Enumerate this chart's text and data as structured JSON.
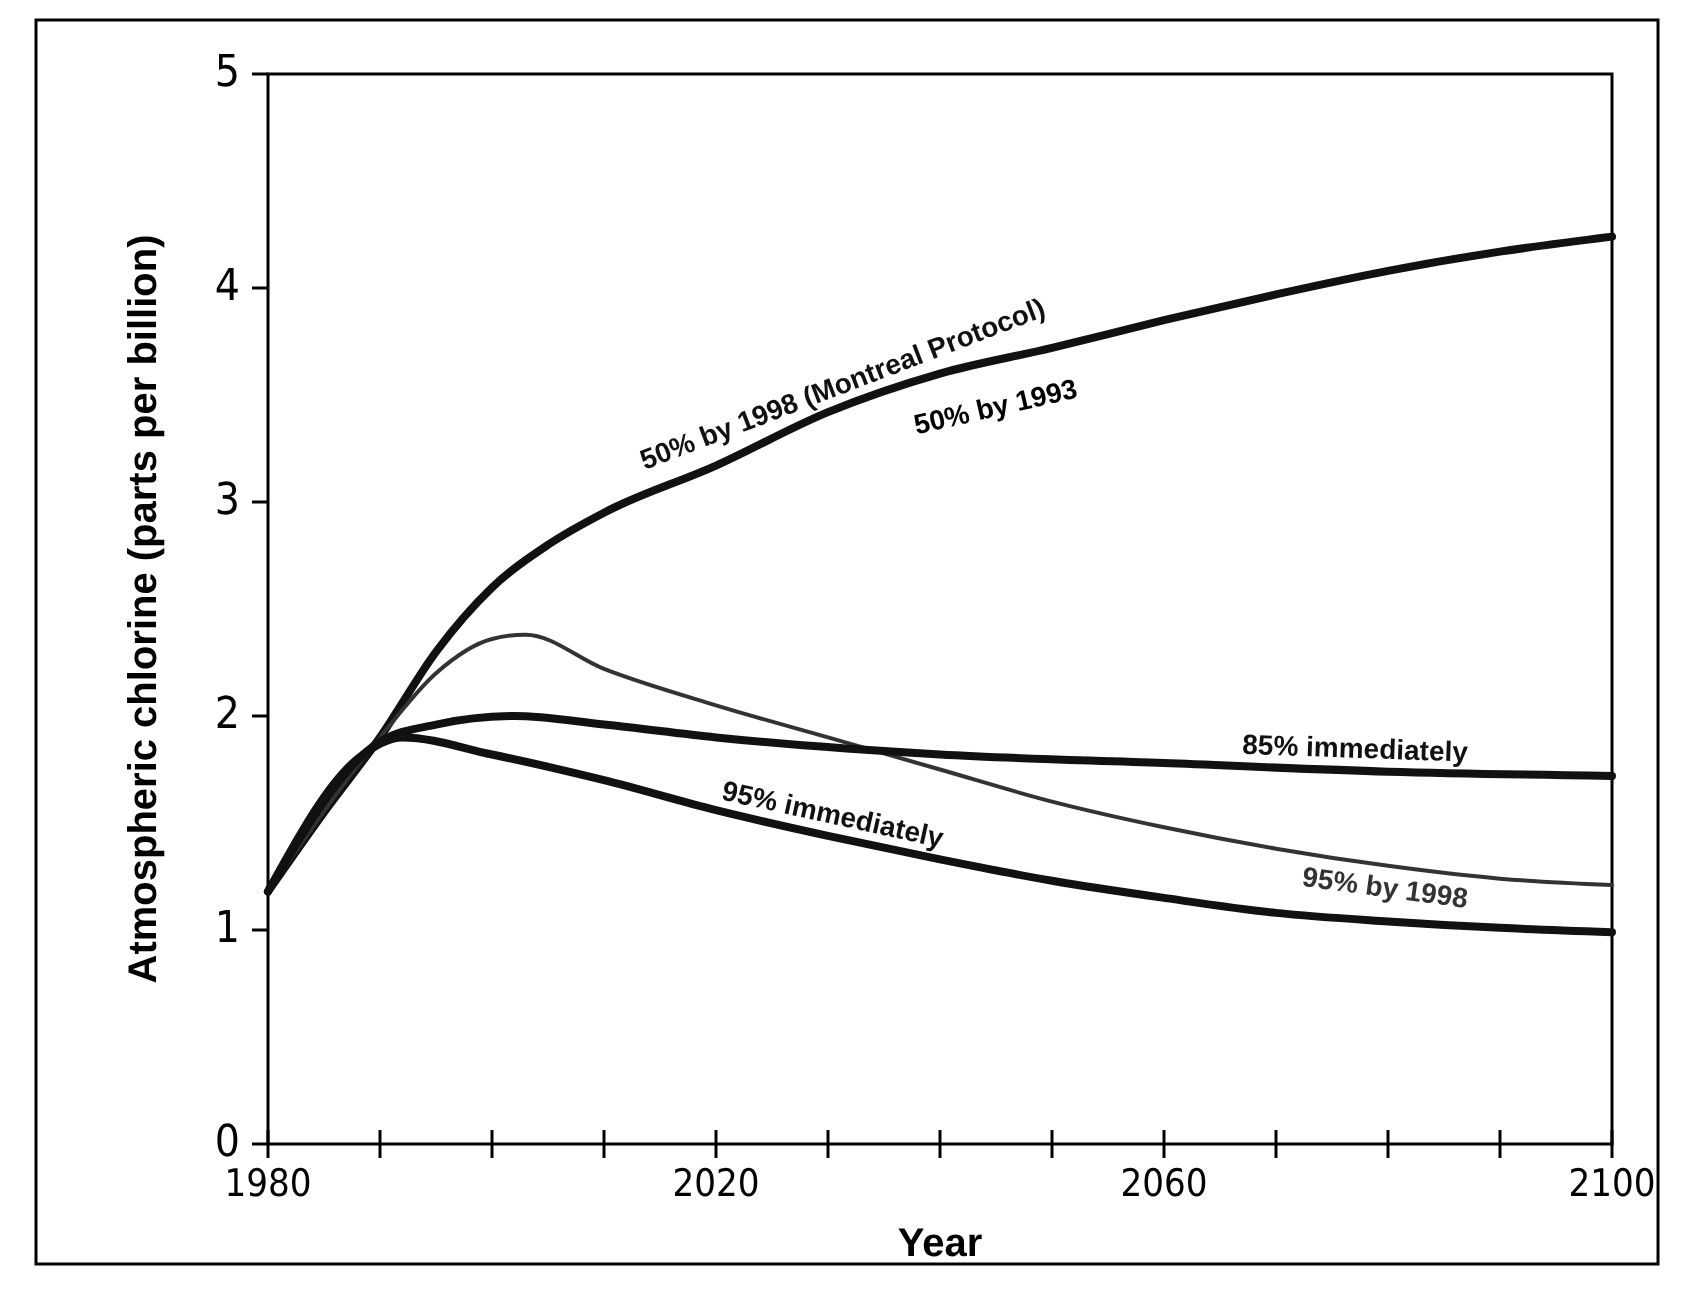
{
  "chart_data": {
    "type": "line",
    "xlabel": "Year",
    "ylabel": "Atmospheric chlorine (parts per billion)",
    "xlim": [
      1980,
      2100
    ],
    "xticks": [
      1980,
      {
        "value": 1990,
        "label": null
      },
      {
        "value": 2000,
        "label": null
      },
      {
        "value": 2010,
        "label": null
      },
      2020,
      {
        "value": 2030,
        "label": null
      },
      {
        "value": 2040,
        "label": null
      },
      {
        "value": 2050,
        "label": null
      },
      2060,
      {
        "value": 2070,
        "label": null
      },
      {
        "value": 2080,
        "label": null
      },
      {
        "value": 2090,
        "label": null
      },
      2100
    ],
    "ylim": [
      0,
      5
    ],
    "yticks": [
      0,
      1,
      2,
      3,
      4,
      5
    ],
    "grid": false,
    "legend": false,
    "marker": "none",
    "line_style": "solid",
    "series": [
      {
        "name": "50% by 1998 (Montreal Protocol)",
        "color": "#111111",
        "x": [
          1980,
          1985,
          1990,
          1995,
          2000,
          2005,
          2010,
          2020,
          2030,
          2040,
          2050,
          2060,
          2070,
          2080,
          2090,
          2100
        ],
        "values": [
          1.18,
          1.55,
          1.9,
          2.3,
          2.6,
          2.8,
          2.95,
          3.17,
          3.42,
          3.6,
          3.72,
          3.85,
          3.97,
          4.08,
          4.17,
          4.24
        ]
      },
      {
        "name": "95% by 1998",
        "color": "#333333",
        "x": [
          1980,
          1990,
          1995,
          2000,
          2003,
          2010,
          2020,
          2030,
          2040,
          2050,
          2060,
          2070,
          2080,
          2090,
          2100
        ],
        "values": [
          1.18,
          1.9,
          2.2,
          2.36,
          2.38,
          2.22,
          2.05,
          1.9,
          1.75,
          1.6,
          1.48,
          1.38,
          1.3,
          1.24,
          1.21
        ]
      },
      {
        "name": "85% immediately",
        "color": "#111111",
        "x": [
          1980,
          1990,
          1995,
          2002,
          2010,
          2020,
          2040,
          2060,
          2080,
          2100
        ],
        "values": [
          1.18,
          1.88,
          1.96,
          2.0,
          1.96,
          1.9,
          1.82,
          1.78,
          1.74,
          1.72
        ]
      },
      {
        "name": "95% immediately",
        "color": "#111111",
        "x": [
          1980,
          1988,
          1992,
          2000,
          2010,
          2020,
          2030,
          2040,
          2050,
          2060,
          2070,
          2080,
          2090,
          2100
        ],
        "values": [
          1.18,
          1.8,
          1.9,
          1.82,
          1.7,
          1.56,
          1.44,
          1.33,
          1.23,
          1.15,
          1.08,
          1.04,
          1.01,
          0.99
        ]
      }
    ],
    "annotations": [
      {
        "text": "50% by 1993",
        "x": 2045,
        "y": 3.66
      }
    ]
  }
}
